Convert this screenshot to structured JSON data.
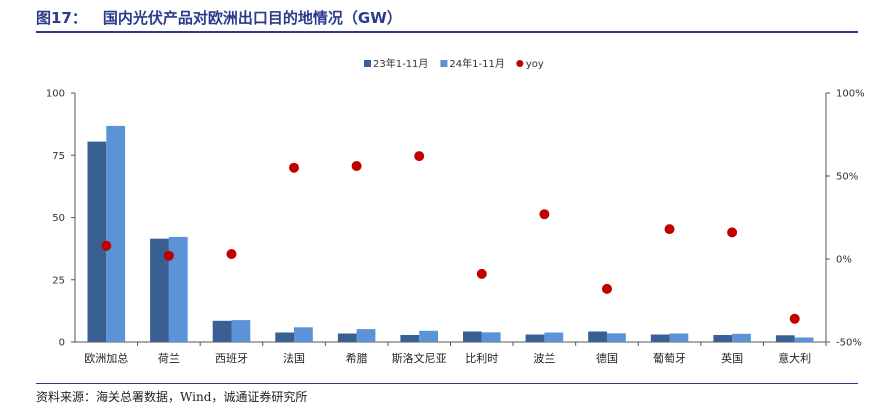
{
  "figure": {
    "number": "图17：",
    "title": "国内光伏产品对欧洲出口目的地情况（GW）",
    "source": "资料来源：海关总署数据，Wind，诚通证券研究所"
  },
  "colors": {
    "series_23": "#3a5f92",
    "series_24": "#5b93d6",
    "yoy": "#c00000",
    "title": "#2b3a8c"
  },
  "chart_data": {
    "type": "bar",
    "categories": [
      "欧洲加总",
      "荷兰",
      "西班牙",
      "法国",
      "希腊",
      "斯洛文尼亚",
      "比利时",
      "波兰",
      "德国",
      "葡萄牙",
      "英国",
      "意大利"
    ],
    "series": [
      {
        "name": "23年1-11月",
        "values": [
          80.5,
          41.5,
          8.5,
          3.8,
          3.4,
          2.8,
          4.2,
          3.0,
          4.2,
          3.0,
          2.8,
          2.7
        ]
      },
      {
        "name": "24年1-11月",
        "values": [
          86.8,
          42.2,
          8.8,
          5.9,
          5.2,
          4.5,
          3.9,
          3.8,
          3.5,
          3.4,
          3.3,
          1.8
        ]
      }
    ],
    "yoy": {
      "name": "yoy",
      "values": [
        0.08,
        0.02,
        0.03,
        0.55,
        0.56,
        0.62,
        -0.09,
        0.27,
        -0.18,
        0.18,
        0.16,
        -0.36
      ]
    },
    "y_left": {
      "min": 0,
      "max": 100,
      "ticks": [
        "0",
        "25",
        "50",
        "75",
        "100"
      ]
    },
    "y_right": {
      "min": -0.5,
      "max": 1.0,
      "ticks": [
        "-50%",
        "0%",
        "50%",
        "100%"
      ]
    },
    "legend": {
      "position": "top"
    },
    "grid": false
  }
}
